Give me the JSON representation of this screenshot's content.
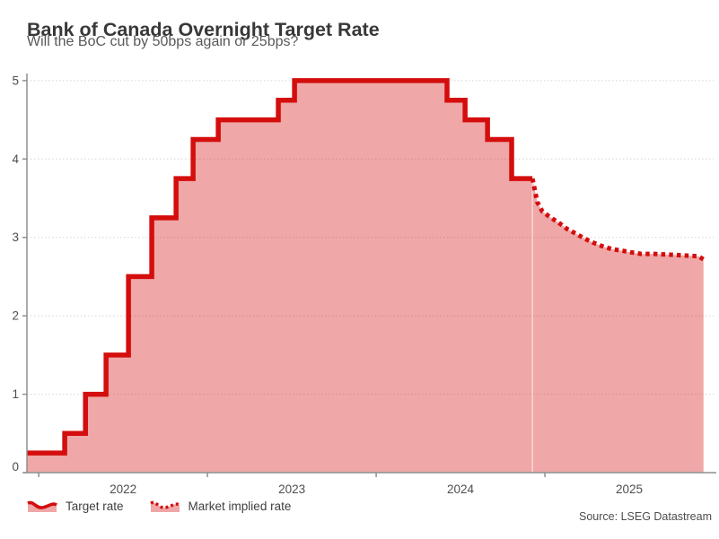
{
  "header": {
    "title": "Bank of Canada Overnight Target Rate",
    "subtitle": "Will the BoC cut by 50bps again or 25bps?"
  },
  "legend": [
    {
      "label": "Target rate",
      "style": "solid"
    },
    {
      "label": "Market implied rate",
      "style": "dotted"
    }
  ],
  "source": "Source: LSEG Datastream",
  "colors": {
    "line": "#d40d0d",
    "fill": "rgba(214,24,24,0.38)",
    "axis": "#8f8f8f",
    "grid": "#d4d4d4",
    "tick": "#4d4d4d"
  },
  "chart_data": {
    "type": "area",
    "title": "Bank of Canada Overnight Target Rate",
    "subtitle": "Will the BoC cut by 50bps again or 25bps?",
    "xlabel": "",
    "ylabel": "",
    "x_range": [
      2021.93,
      2026.0
    ],
    "y_range": [
      0,
      5.09
    ],
    "x_ticks": [
      2022,
      2023,
      2024,
      2025
    ],
    "y_ticks": [
      0,
      1,
      2,
      3,
      4,
      5
    ],
    "grid": "horizontal-dotted",
    "legend_position": "bottom-left",
    "series": [
      {
        "name": "Target rate",
        "type": "step",
        "line_style": "solid",
        "points": [
          [
            2021.93,
            0.25
          ],
          [
            2022.154,
            0.5
          ],
          [
            2022.277,
            1.0
          ],
          [
            2022.399,
            1.5
          ],
          [
            2022.532,
            2.5
          ],
          [
            2022.67,
            3.25
          ],
          [
            2022.814,
            3.75
          ],
          [
            2022.915,
            4.25
          ],
          [
            2023.064,
            4.5
          ],
          [
            2023.42,
            4.75
          ],
          [
            2023.516,
            5.0
          ],
          [
            2024.42,
            4.75
          ],
          [
            2024.527,
            4.5
          ],
          [
            2024.66,
            4.25
          ],
          [
            2024.803,
            3.75
          ],
          [
            2024.926,
            3.75
          ]
        ]
      },
      {
        "name": "Market implied rate",
        "type": "line",
        "line_style": "dotted",
        "points": [
          [
            2024.926,
            3.75
          ],
          [
            2024.955,
            3.45
          ],
          [
            2024.985,
            3.33
          ],
          [
            2025.03,
            3.26
          ],
          [
            2025.08,
            3.19
          ],
          [
            2025.13,
            3.11
          ],
          [
            2025.19,
            3.04
          ],
          [
            2025.24,
            2.98
          ],
          [
            2025.29,
            2.93
          ],
          [
            2025.35,
            2.88
          ],
          [
            2025.4,
            2.85
          ],
          [
            2025.46,
            2.83
          ],
          [
            2025.51,
            2.81
          ],
          [
            2025.57,
            2.79
          ],
          [
            2025.65,
            2.79
          ],
          [
            2025.74,
            2.78
          ],
          [
            2025.83,
            2.77
          ],
          [
            2025.91,
            2.76
          ],
          [
            2025.94,
            2.72
          ]
        ]
      }
    ]
  }
}
